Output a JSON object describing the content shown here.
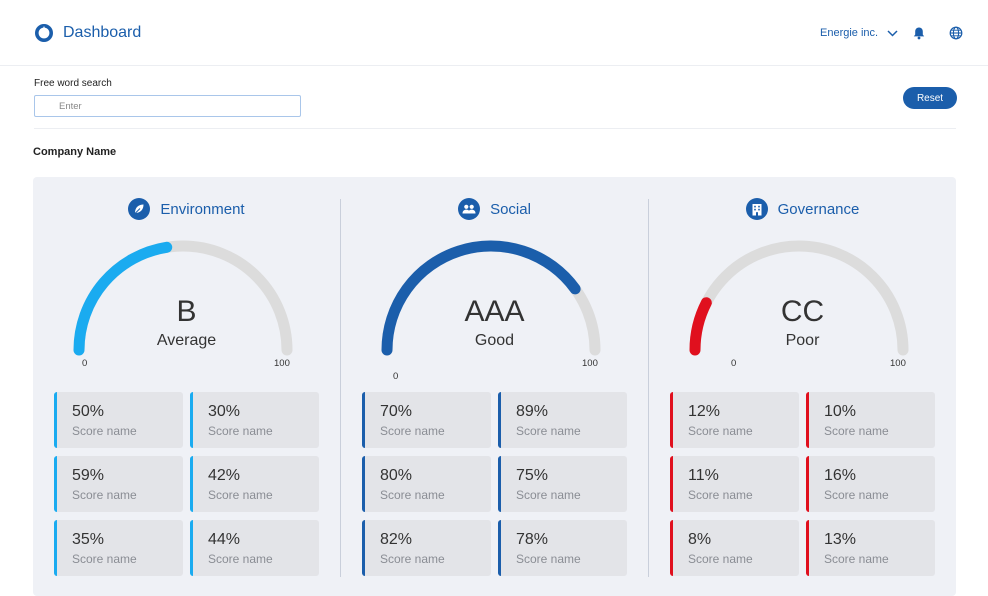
{
  "header": {
    "title": "Dashboard",
    "company": "Energie inc.",
    "brand_color": "#1b5eab"
  },
  "search": {
    "label": "Free word search",
    "placeholder": "Enter",
    "value": ""
  },
  "reset_label": "Reset",
  "company_name": "Company Name",
  "sections": [
    {
      "title": "Environment",
      "icon": "leaf-icon",
      "grade": "B",
      "rating": "Average",
      "min": "0",
      "max": "100",
      "gauge_fraction": 0.45,
      "color": "#1aabf0",
      "scores": [
        {
          "value": "50%",
          "label": "Score name"
        },
        {
          "value": "30%",
          "label": "Score name"
        },
        {
          "value": "59%",
          "label": "Score name"
        },
        {
          "value": "42%",
          "label": "Score name"
        },
        {
          "value": "35%",
          "label": "Score name"
        },
        {
          "value": "44%",
          "label": "Score name"
        }
      ]
    },
    {
      "title": "Social",
      "icon": "people-icon",
      "grade": "AAA",
      "rating": "Good",
      "min": "0",
      "max": "100",
      "gauge_fraction": 0.8,
      "color": "#1b5eab",
      "scores": [
        {
          "value": "70%",
          "label": "Score name"
        },
        {
          "value": "89%",
          "label": "Score name"
        },
        {
          "value": "80%",
          "label": "Score name"
        },
        {
          "value": "75%",
          "label": "Score name"
        },
        {
          "value": "82%",
          "label": "Score name"
        },
        {
          "value": "78%",
          "label": "Score name"
        }
      ]
    },
    {
      "title": "Governance",
      "icon": "building-icon",
      "grade": "CC",
      "rating": "Poor",
      "min": "0",
      "max": "100",
      "gauge_fraction": 0.15,
      "color": "#e0101e",
      "scores": [
        {
          "value": "12%",
          "label": "Score name"
        },
        {
          "value": "10%",
          "label": "Score name"
        },
        {
          "value": "11%",
          "label": "Score name"
        },
        {
          "value": "16%",
          "label": "Score name"
        },
        {
          "value": "8%",
          "label": "Score name"
        },
        {
          "value": "13%",
          "label": "Score name"
        }
      ]
    }
  ]
}
